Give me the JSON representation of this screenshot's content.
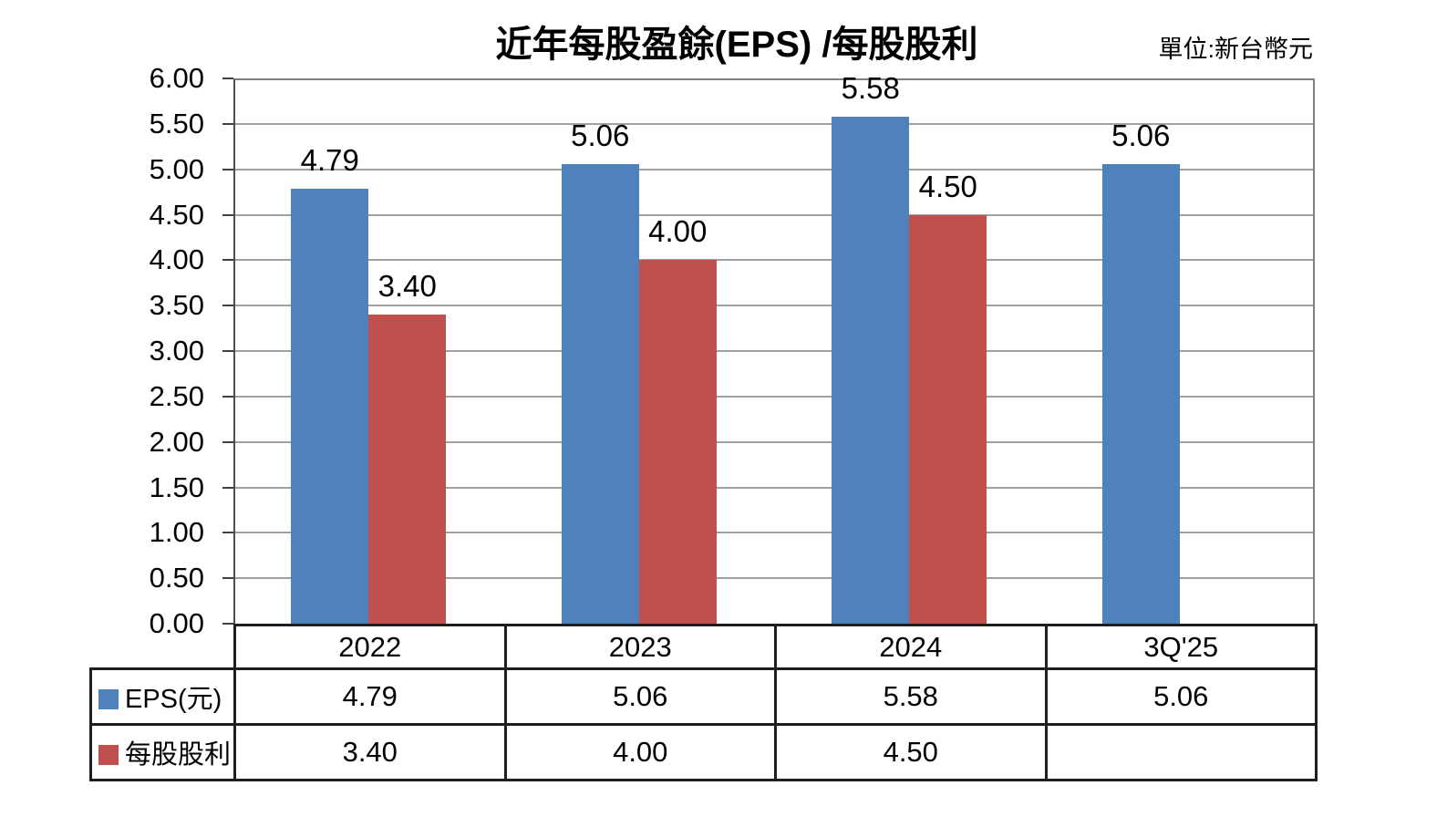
{
  "header": {
    "title": "近年每股盈餘(EPS) /每股股利",
    "unit_label": "單位:新台幣元"
  },
  "colors": {
    "eps_blue": "#4F81BD",
    "dividend_red": "#C0504D",
    "gridline_gray": "#A0A0A0",
    "axis_black": "#1F1F1F"
  },
  "chart_data": {
    "type": "bar",
    "title": "近年每股盈餘(EPS) /每股股利",
    "unit": "單位:新台幣元",
    "categories": [
      "2022",
      "2023",
      "2024",
      "3Q'25"
    ],
    "series": [
      {
        "name": "EPS(元)",
        "key": "eps",
        "color": "#4F81BD",
        "values": [
          4.79,
          5.06,
          5.58,
          5.06
        ]
      },
      {
        "name": "每股股利",
        "key": "dividend",
        "color": "#C0504D",
        "values": [
          3.4,
          4.0,
          4.5,
          null
        ]
      }
    ],
    "data_labels": {
      "eps": [
        "4.79",
        "5.06",
        "5.58",
        "5.06"
      ],
      "dividend": [
        "3.40",
        "4.00",
        "4.50",
        ""
      ]
    },
    "ylim": [
      0,
      6
    ],
    "ytick_step": 0.5,
    "yticks": [
      "6.00",
      "5.50",
      "5.00",
      "4.50",
      "4.00",
      "3.50",
      "3.00",
      "2.50",
      "2.00",
      "1.50",
      "1.00",
      "0.50",
      "0.00"
    ],
    "grid": true,
    "legend_position": "table-left",
    "table": {
      "category_row": [
        "2022",
        "2023",
        "2024",
        "3Q'25"
      ],
      "rows": [
        {
          "label": "EPS(元)",
          "values": [
            "4.79",
            "5.06",
            "5.58",
            "5.06"
          ]
        },
        {
          "label": "每股股利",
          "values": [
            "3.40",
            "4.00",
            "4.50",
            ""
          ]
        }
      ]
    }
  }
}
